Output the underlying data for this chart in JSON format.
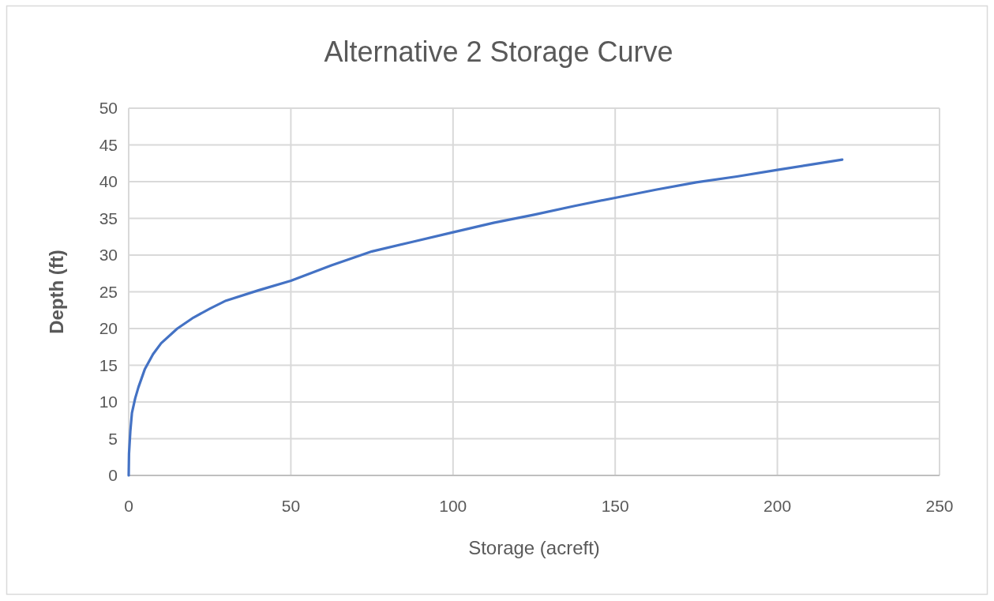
{
  "chart_data": {
    "type": "line",
    "title": "Alternative 2 Storage Curve",
    "xlabel": "Storage (acreft)",
    "ylabel": "Depth (ft)",
    "series": [
      {
        "color": "#4472c4",
        "x": [
          0,
          0.1,
          0.5,
          1,
          2,
          3,
          5,
          7.5,
          10,
          15,
          20,
          25,
          30,
          40,
          50,
          62.5,
          75,
          87.5,
          100,
          112.5,
          125,
          137.5,
          150,
          162.5,
          175,
          187.5,
          200,
          210,
          220
        ],
        "values": [
          0,
          3,
          6,
          8.5,
          10.5,
          12,
          14.5,
          16.5,
          18,
          20,
          21.5,
          22.7,
          23.8,
          25.2,
          26.5,
          28.6,
          30.5,
          31.8,
          33.1,
          34.4,
          35.5,
          36.7,
          37.8,
          38.9,
          39.9,
          40.7,
          41.6,
          42.3,
          43
        ]
      }
    ],
    "xlim": [
      0,
      250
    ],
    "xticks": [
      0,
      50,
      100,
      150,
      200,
      250
    ],
    "ylim": [
      0,
      50
    ],
    "yticks": [
      0,
      5,
      10,
      15,
      20,
      25,
      30,
      35,
      40,
      45,
      50
    ],
    "grid": true,
    "marker": "none",
    "line_style": "solid"
  }
}
